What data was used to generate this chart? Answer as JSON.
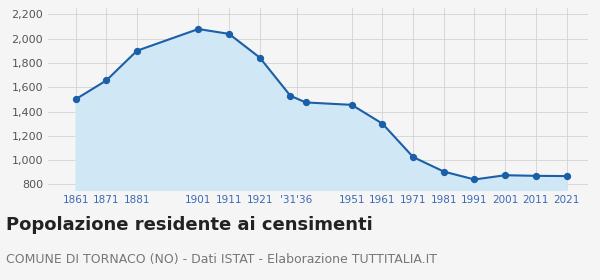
{
  "years": [
    1861,
    1871,
    1881,
    1901,
    1911,
    1921,
    1931,
    1936,
    1951,
    1961,
    1971,
    1981,
    1991,
    2001,
    2011,
    2021
  ],
  "population": [
    1501,
    1656,
    1901,
    2080,
    2040,
    1845,
    1530,
    1475,
    1455,
    1300,
    1025,
    905,
    840,
    875,
    870,
    868
  ],
  "line_color": "#1a5fa8",
  "fill_color": "#d0e8f5",
  "marker_color": "#1a5fa8",
  "background_color": "#f5f5f5",
  "grid_color": "#cccccc",
  "ylim": [
    750,
    2250
  ],
  "yticks": [
    800,
    1000,
    1200,
    1400,
    1600,
    1800,
    2000,
    2200
  ],
  "x_tick_positions": [
    1861,
    1871,
    1881,
    1901,
    1911,
    1921,
    1933,
    1951,
    1961,
    1971,
    1981,
    1991,
    2001,
    2011,
    2021
  ],
  "x_tick_labels": [
    "1861",
    "1871",
    "1881",
    "1901",
    "1911",
    "1921",
    "'31'36",
    "1951",
    "1961",
    "1971",
    "1981",
    "1991",
    "2001",
    "2011",
    "2021"
  ],
  "title": "Popolazione residente ai censimenti",
  "subtitle": "COMUNE DI TORNACO (NO) - Dati ISTAT - Elaborazione TUTTITALIA.IT",
  "title_fontsize": 13,
  "subtitle_fontsize": 9,
  "tick_color": "#3a6ab5",
  "xlim": [
    1852,
    2028
  ]
}
